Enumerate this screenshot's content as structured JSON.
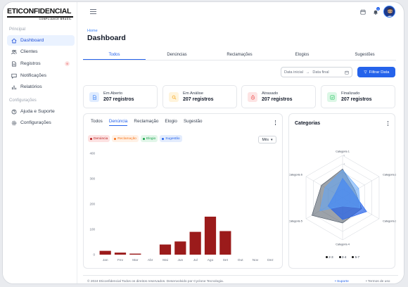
{
  "brand": {
    "name": "ETICONFIDENCIAL",
    "tagline": "COMPLIANCE BRASIL"
  },
  "sidebar": {
    "section1": "Principal",
    "items": [
      {
        "label": "Dashboard",
        "icon": "home-icon",
        "active": true
      },
      {
        "label": "Clientes",
        "icon": "users-icon"
      },
      {
        "label": "Registros",
        "icon": "file-icon",
        "badge": "9"
      },
      {
        "label": "Notificações",
        "icon": "chat-icon"
      },
      {
        "label": "Relatórios",
        "icon": "bar-chart-icon"
      }
    ],
    "section2": "Configurações",
    "items2": [
      {
        "label": "Ajuda e Suporte",
        "icon": "help-icon"
      },
      {
        "label": "Configurações",
        "icon": "gear-icon"
      }
    ]
  },
  "topbar": {
    "bell_badge": "3"
  },
  "page": {
    "breadcrumb": "Home",
    "title": "Dashboard"
  },
  "tabs": [
    "Todos",
    "Denúncias",
    "Reclamações",
    "Elogios",
    "Sugestões"
  ],
  "filters": {
    "date_start": "Data inicial",
    "date_end": "Data final",
    "filter_button": "Filtrar Data"
  },
  "stats": [
    {
      "label": "Em Aberto",
      "value": "207 registros",
      "color": "#3b82f6",
      "bg": "#e0ecff"
    },
    {
      "label": "Em Análise",
      "value": "207 registros",
      "color": "#f59e0b",
      "bg": "#fff4dc"
    },
    {
      "label": "Atrasado",
      "value": "207 registros",
      "color": "#ef4444",
      "bg": "#fde4e4"
    },
    {
      "label": "Finalizado",
      "value": "207 registros",
      "color": "#22c55e",
      "bg": "#dcf7e6"
    }
  ],
  "bar_card": {
    "tabs": [
      "Todos",
      "Denúncia",
      "Reclamação",
      "Elogio",
      "Sugestão"
    ],
    "legend": [
      {
        "label": "Denúncia",
        "color": "#b91c1c",
        "bg": "#fde2e2"
      },
      {
        "label": "Reclamação",
        "color": "#f97316",
        "bg": "#fff1e6"
      },
      {
        "label": "Elogio",
        "color": "#16a34a",
        "bg": "#e2f6e9"
      },
      {
        "label": "Sugestão",
        "color": "#2563eb",
        "bg": "#e3ecfd"
      }
    ],
    "select": "Mês"
  },
  "radar_card": {
    "title": "Categorias",
    "legend": [
      "2-3",
      "3-4",
      "5-7"
    ]
  },
  "chart_data": [
    {
      "type": "bar",
      "categories": [
        "Jan",
        "Fev",
        "Mar",
        "Abr",
        "Mai",
        "Jun",
        "Jul",
        "Ago",
        "Set",
        "Out",
        "Nov",
        "Dez"
      ],
      "values": [
        15,
        8,
        4,
        0,
        40,
        52,
        90,
        150,
        93,
        0,
        0,
        0
      ],
      "yticks": [
        "0",
        "100",
        "200",
        "300",
        "400"
      ],
      "ylim": [
        0,
        400
      ],
      "color": "#9b1b1b"
    },
    {
      "type": "radar",
      "axes": [
        "Categoria 1",
        "Categoria 2",
        "Categoria 3",
        "Categoria 4",
        "Categoria 5",
        "Categoria 6"
      ],
      "scale": [
        "1",
        "2",
        "3",
        "4",
        "5"
      ],
      "max": 5,
      "series": [
        {
          "name": "2-3",
          "values": [
            3.4,
            1.7,
            2.6,
            3.0,
            4.2,
            2.9
          ],
          "color": "#4b5563"
        },
        {
          "name": "3-4",
          "values": [
            2.3,
            1.4,
            3.3,
            2.6,
            2.0,
            1.0
          ],
          "color": "#2563eb"
        },
        {
          "name": "5-7",
          "values": [
            3.3,
            2.2,
            2.4,
            1.0,
            3.1,
            2.4
          ],
          "color": "#60a5fa"
        }
      ]
    }
  ],
  "footer": {
    "text": "© 2024 Eticonfidencial Todos os direitos reservados. Desenvolvido por Cyclone Tecnologia.",
    "support": "• Suporte",
    "terms": "• Termos de uso"
  }
}
